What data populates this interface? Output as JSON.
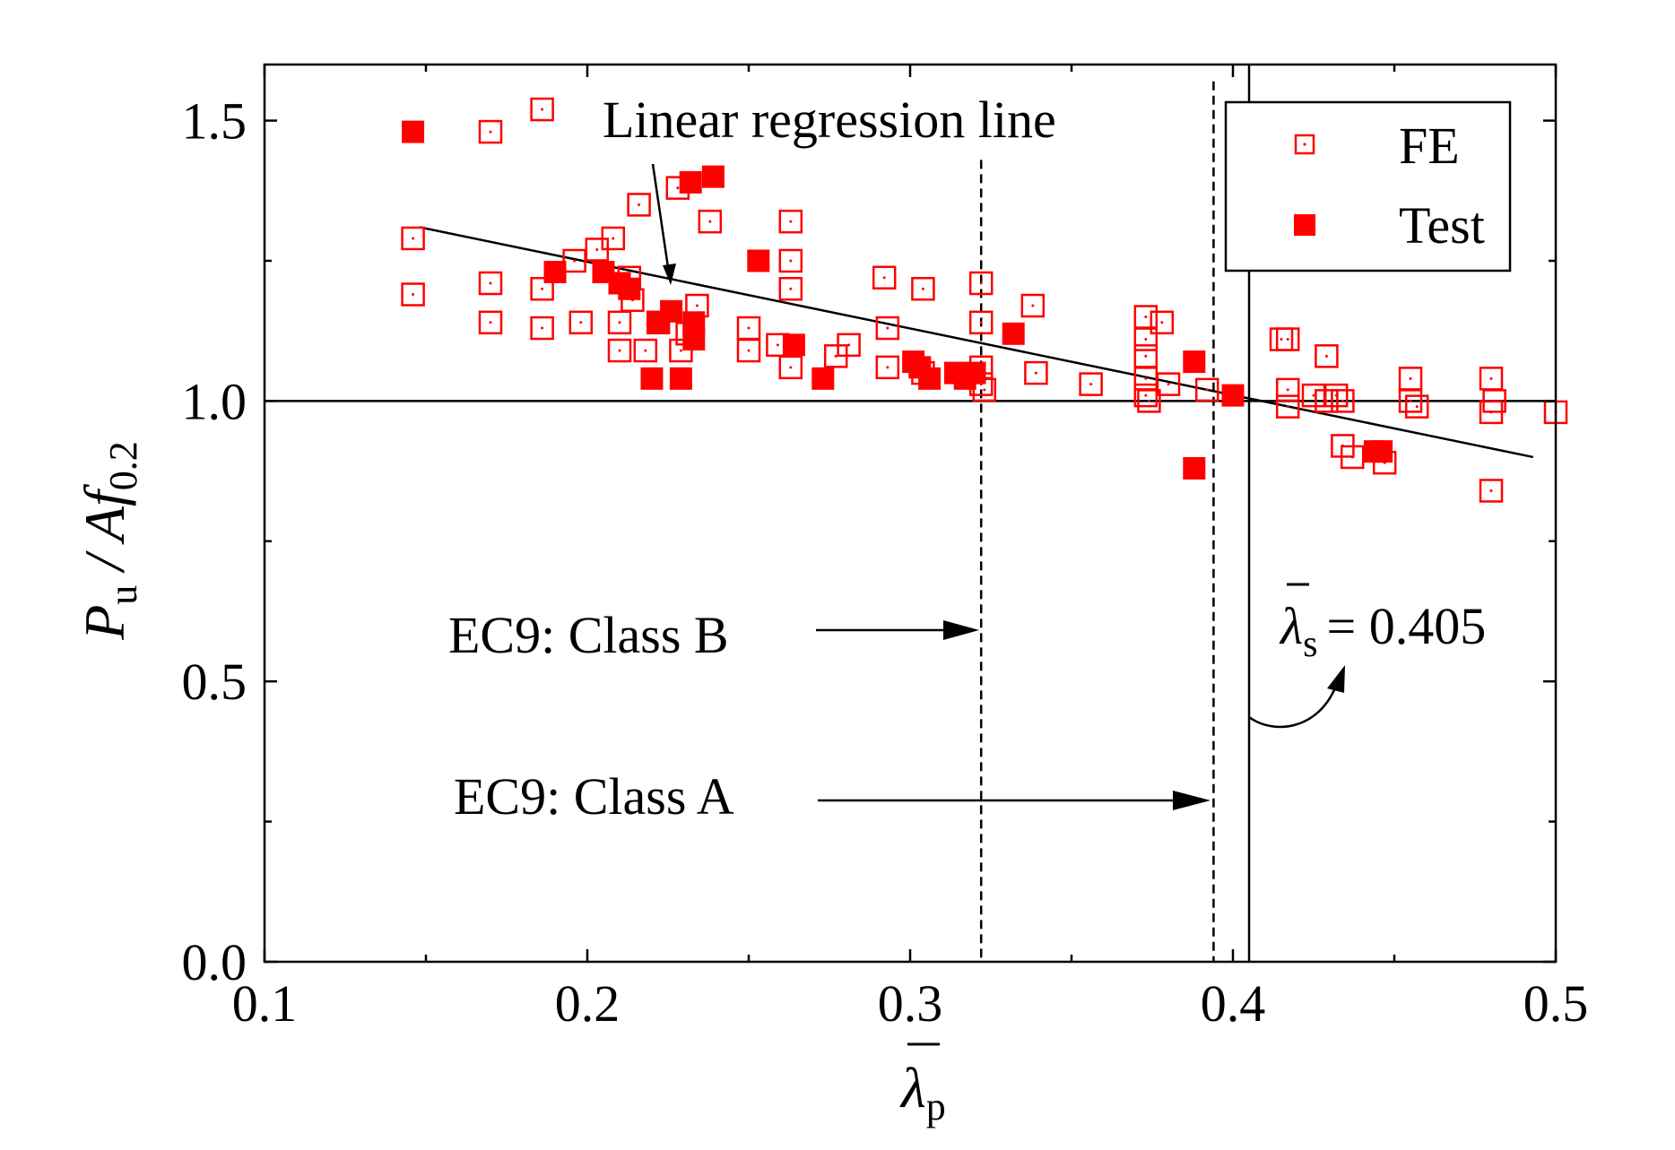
{
  "chart_data": {
    "type": "scatter",
    "title": "",
    "xlabel": "λ̄p",
    "ylabel": "Pu / Af0.2",
    "xlim": [
      0.1,
      0.5
    ],
    "ylim": [
      0.0,
      1.6
    ],
    "x_ticks": [
      "0.1",
      "0.2",
      "0.3",
      "0.4",
      "0.5"
    ],
    "y_ticks": [
      "0.0",
      "0.5",
      "1.0",
      "1.5"
    ],
    "x_tick_values": [
      0.1,
      0.2,
      0.3,
      0.4,
      0.5
    ],
    "y_tick_values": [
      0.0,
      0.5,
      1.0,
      1.5
    ],
    "y_axis_label": {
      "main": "P",
      "sub1": "u",
      "mid": " / A",
      "f": "f",
      "sub2": "0.2"
    },
    "x_axis_label": {
      "main": "λ",
      "sub": "p"
    },
    "legend": {
      "position": "top-right",
      "entries": [
        {
          "label": "FE",
          "marker": "open-square"
        },
        {
          "label": "Test",
          "marker": "filled-square"
        }
      ]
    },
    "color": "#ff0000",
    "series": [
      {
        "name": "FE",
        "marker": "open-square",
        "points": [
          [
            0.146,
            1.29
          ],
          [
            0.146,
            1.19
          ],
          [
            0.17,
            1.48
          ],
          [
            0.17,
            1.21
          ],
          [
            0.17,
            1.14
          ],
          [
            0.186,
            1.52
          ],
          [
            0.186,
            1.2
          ],
          [
            0.186,
            1.13
          ],
          [
            0.196,
            1.25
          ],
          [
            0.198,
            1.14
          ],
          [
            0.203,
            1.27
          ],
          [
            0.208,
            1.29
          ],
          [
            0.21,
            1.14
          ],
          [
            0.21,
            1.09
          ],
          [
            0.213,
            1.22
          ],
          [
            0.214,
            1.18
          ],
          [
            0.216,
            1.35
          ],
          [
            0.218,
            1.09
          ],
          [
            0.222,
            1.14
          ],
          [
            0.228,
            1.38
          ],
          [
            0.229,
            1.09
          ],
          [
            0.231,
            1.12
          ],
          [
            0.234,
            1.17
          ],
          [
            0.238,
            1.32
          ],
          [
            0.25,
            1.13
          ],
          [
            0.25,
            1.09
          ],
          [
            0.259,
            1.1
          ],
          [
            0.263,
            1.32
          ],
          [
            0.263,
            1.25
          ],
          [
            0.263,
            1.2
          ],
          [
            0.263,
            1.06
          ],
          [
            0.277,
            1.08
          ],
          [
            0.281,
            1.1
          ],
          [
            0.292,
            1.22
          ],
          [
            0.293,
            1.13
          ],
          [
            0.293,
            1.06
          ],
          [
            0.304,
            1.2
          ],
          [
            0.304,
            1.05
          ],
          [
            0.322,
            1.21
          ],
          [
            0.322,
            1.14
          ],
          [
            0.322,
            1.06
          ],
          [
            0.322,
            1.03
          ],
          [
            0.323,
            1.02
          ],
          [
            0.338,
            1.17
          ],
          [
            0.339,
            1.05
          ],
          [
            0.356,
            1.03
          ],
          [
            0.373,
            1.15
          ],
          [
            0.373,
            1.11
          ],
          [
            0.373,
            1.08
          ],
          [
            0.373,
            1.04
          ],
          [
            0.373,
            1.01
          ],
          [
            0.374,
            1.0
          ],
          [
            0.378,
            1.14
          ],
          [
            0.38,
            1.03
          ],
          [
            0.392,
            1.02
          ],
          [
            0.415,
            1.11
          ],
          [
            0.417,
            1.11
          ],
          [
            0.417,
            1.02
          ],
          [
            0.417,
            0.99
          ],
          [
            0.425,
            1.01
          ],
          [
            0.429,
            1.08
          ],
          [
            0.429,
            1.0
          ],
          [
            0.432,
            1.01
          ],
          [
            0.434,
            1.0
          ],
          [
            0.434,
            0.92
          ],
          [
            0.437,
            0.9
          ],
          [
            0.447,
            0.89
          ],
          [
            0.455,
            1.04
          ],
          [
            0.455,
            1.0
          ],
          [
            0.457,
            0.99
          ],
          [
            0.48,
            1.04
          ],
          [
            0.48,
            0.98
          ],
          [
            0.481,
            1.0
          ],
          [
            0.48,
            0.84
          ],
          [
            0.5,
            0.98
          ]
        ]
      },
      {
        "name": "Test",
        "marker": "filled-square",
        "points": [
          [
            0.146,
            1.48
          ],
          [
            0.19,
            1.23
          ],
          [
            0.205,
            1.23
          ],
          [
            0.21,
            1.21
          ],
          [
            0.213,
            1.2
          ],
          [
            0.22,
            1.04
          ],
          [
            0.222,
            1.14
          ],
          [
            0.226,
            1.16
          ],
          [
            0.229,
            1.04
          ],
          [
            0.233,
            1.11
          ],
          [
            0.233,
            1.14
          ],
          [
            0.232,
            1.39
          ],
          [
            0.239,
            1.4
          ],
          [
            0.253,
            1.25
          ],
          [
            0.264,
            1.1
          ],
          [
            0.273,
            1.04
          ],
          [
            0.301,
            1.07
          ],
          [
            0.303,
            1.06
          ],
          [
            0.306,
            1.04
          ],
          [
            0.314,
            1.05
          ],
          [
            0.317,
            1.04
          ],
          [
            0.32,
            1.05
          ],
          [
            0.332,
            1.12
          ],
          [
            0.388,
            1.07
          ],
          [
            0.388,
            0.88
          ],
          [
            0.4,
            1.01
          ],
          [
            0.444,
            0.91
          ],
          [
            0.446,
            0.91
          ]
        ]
      }
    ],
    "regression_line": {
      "name": "Linear regression line",
      "x": [
        0.148,
        0.493
      ],
      "y": [
        1.31,
        0.9
      ]
    },
    "reference_lines": [
      {
        "type": "horizontal",
        "y": 1.0,
        "style": "solid"
      },
      {
        "type": "vertical",
        "x": 0.322,
        "style": "dashed",
        "label": "EC9: Class B"
      },
      {
        "type": "vertical",
        "x": 0.394,
        "style": "dashed",
        "label": "EC9: Class A"
      },
      {
        "type": "vertical",
        "x": 0.405,
        "style": "solid",
        "label": "= 0.405"
      }
    ],
    "annotations": {
      "regression": "Linear regression line",
      "class_b": "EC9: Class B",
      "class_a": "EC9: Class A",
      "lambda_s_symbol": "λ",
      "lambda_s_sub": "s",
      "lambda_s_value": "= 0.405"
    }
  }
}
